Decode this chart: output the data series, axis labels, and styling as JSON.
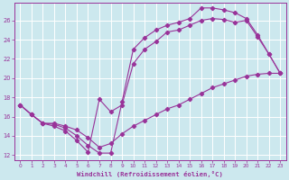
{
  "xlabel": "Windchill (Refroidissement éolien,°C)",
  "ylabel": "",
  "bg_color": "#cce8ee",
  "line_color": "#993399",
  "grid_color": "#ffffff",
  "xlim": [
    -0.5,
    23.5
  ],
  "ylim": [
    11.5,
    27.8
  ],
  "xticks": [
    0,
    1,
    2,
    3,
    4,
    5,
    6,
    7,
    8,
    9,
    10,
    11,
    12,
    13,
    14,
    15,
    16,
    17,
    18,
    19,
    20,
    21,
    22,
    23
  ],
  "yticks": [
    12,
    14,
    16,
    18,
    20,
    22,
    24,
    26
  ],
  "line1_x": [
    0,
    1,
    2,
    3,
    4,
    5,
    6,
    7,
    8,
    9,
    10,
    11,
    12,
    13,
    14,
    15,
    16,
    17,
    18,
    19,
    20,
    21,
    22,
    23
  ],
  "line1_y": [
    17.2,
    16.2,
    15.3,
    15.3,
    15.0,
    14.6,
    13.8,
    12.8,
    13.2,
    14.2,
    15.0,
    15.6,
    16.2,
    16.8,
    17.2,
    17.8,
    18.4,
    19.0,
    19.4,
    19.8,
    20.2,
    20.4,
    20.5,
    20.5
  ],
  "line2_x": [
    0,
    1,
    2,
    3,
    4,
    5,
    6,
    7,
    8,
    9,
    10,
    11,
    12,
    13,
    14,
    15,
    16,
    17,
    18,
    19,
    20,
    21,
    22,
    23
  ],
  "line2_y": [
    17.2,
    16.2,
    15.3,
    15.0,
    14.5,
    13.5,
    12.3,
    17.8,
    16.5,
    17.2,
    21.5,
    23.0,
    23.8,
    24.8,
    25.0,
    25.5,
    26.0,
    26.2,
    26.1,
    25.8,
    26.0,
    24.3,
    22.5,
    20.5
  ],
  "line3_x": [
    0,
    1,
    2,
    3,
    4,
    5,
    6,
    7,
    8,
    9,
    10,
    11,
    12,
    13,
    14,
    15,
    16,
    17,
    18,
    19,
    20,
    21,
    22,
    23
  ],
  "line3_y": [
    17.2,
    16.2,
    15.3,
    15.2,
    14.8,
    14.0,
    13.0,
    12.2,
    12.2,
    17.5,
    23.0,
    24.2,
    25.0,
    25.5,
    25.8,
    26.2,
    27.3,
    27.3,
    27.1,
    26.8,
    26.2,
    24.5,
    22.5,
    20.5
  ]
}
